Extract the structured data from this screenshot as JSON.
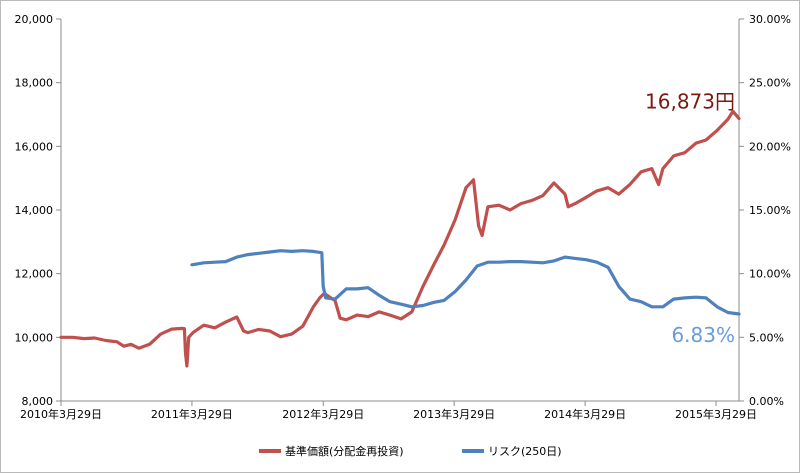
{
  "chart_data": {
    "type": "line",
    "title": "",
    "xlabel": "",
    "ylabel": "",
    "x_ticks": [
      "2010年3月29日",
      "2011年3月29日",
      "2012年3月29日",
      "2013年3月29日",
      "2014年3月29日",
      "2015年3月29日"
    ],
    "x_range": [
      "2010-03-29",
      "2015-06-01"
    ],
    "y_left": {
      "range": [
        8000,
        20000
      ],
      "ticks": [
        "8,000",
        "10,000",
        "12,000",
        "14,000",
        "16,000",
        "18,000",
        "20,000"
      ]
    },
    "y_right": {
      "range": [
        0,
        30
      ],
      "unit": "%",
      "ticks": [
        "0.00%",
        "5.00%",
        "10.00%",
        "15.00%",
        "20.00%",
        "25.00%",
        "30.00%"
      ]
    },
    "grid": false,
    "legend_position": "bottom",
    "series": [
      {
        "name": "基準価額(分配金再投資)",
        "axis": "left",
        "color": "#c0504d",
        "points": [
          [
            "2010-03-29",
            10000
          ],
          [
            "2010-05-01",
            10000
          ],
          [
            "2010-06-01",
            9960
          ],
          [
            "2010-07-01",
            9980
          ],
          [
            "2010-08-01",
            9900
          ],
          [
            "2010-09-01",
            9860
          ],
          [
            "2010-09-20",
            9720
          ],
          [
            "2010-10-10",
            9780
          ],
          [
            "2010-11-01",
            9660
          ],
          [
            "2010-12-01",
            9780
          ],
          [
            "2011-01-01",
            10100
          ],
          [
            "2011-02-01",
            10260
          ],
          [
            "2011-03-01",
            10280
          ],
          [
            "2011-03-08",
            10270
          ],
          [
            "2011-03-11",
            9500
          ],
          [
            "2011-03-15",
            9100
          ],
          [
            "2011-03-20",
            10000
          ],
          [
            "2011-04-01",
            10150
          ],
          [
            "2011-05-01",
            10380
          ],
          [
            "2011-06-01",
            10300
          ],
          [
            "2011-07-01",
            10480
          ],
          [
            "2011-08-01",
            10640
          ],
          [
            "2011-08-20",
            10200
          ],
          [
            "2011-09-01",
            10150
          ],
          [
            "2011-10-01",
            10250
          ],
          [
            "2011-11-01",
            10200
          ],
          [
            "2011-12-01",
            10020
          ],
          [
            "2012-01-01",
            10100
          ],
          [
            "2012-02-01",
            10350
          ],
          [
            "2012-03-01",
            10950
          ],
          [
            "2012-03-20",
            11250
          ],
          [
            "2012-04-01",
            11380
          ],
          [
            "2012-05-01",
            11150
          ],
          [
            "2012-05-15",
            10600
          ],
          [
            "2012-06-01",
            10550
          ],
          [
            "2012-07-01",
            10700
          ],
          [
            "2012-08-01",
            10650
          ],
          [
            "2012-09-01",
            10800
          ],
          [
            "2012-10-01",
            10700
          ],
          [
            "2012-11-01",
            10580
          ],
          [
            "2012-12-01",
            10800
          ],
          [
            "2013-01-01",
            11600
          ],
          [
            "2013-02-01",
            12300
          ],
          [
            "2013-03-01",
            12900
          ],
          [
            "2013-04-01",
            13700
          ],
          [
            "2013-05-01",
            14700
          ],
          [
            "2013-05-22",
            14950
          ],
          [
            "2013-06-05",
            13500
          ],
          [
            "2013-06-15",
            13200
          ],
          [
            "2013-07-01",
            14100
          ],
          [
            "2013-08-01",
            14150
          ],
          [
            "2013-09-01",
            14000
          ],
          [
            "2013-10-01",
            14200
          ],
          [
            "2013-11-01",
            14300
          ],
          [
            "2013-12-01",
            14450
          ],
          [
            "2014-01-01",
            14850
          ],
          [
            "2014-02-01",
            14500
          ],
          [
            "2014-02-10",
            14100
          ],
          [
            "2014-03-01",
            14200
          ],
          [
            "2014-04-01",
            14400
          ],
          [
            "2014-05-01",
            14600
          ],
          [
            "2014-06-01",
            14700
          ],
          [
            "2014-07-01",
            14500
          ],
          [
            "2014-08-01",
            14800
          ],
          [
            "2014-09-01",
            15200
          ],
          [
            "2014-10-01",
            15300
          ],
          [
            "2014-10-20",
            14800
          ],
          [
            "2014-11-01",
            15300
          ],
          [
            "2014-12-01",
            15700
          ],
          [
            "2015-01-01",
            15800
          ],
          [
            "2015-02-01",
            16100
          ],
          [
            "2015-03-01",
            16200
          ],
          [
            "2015-04-01",
            16500
          ],
          [
            "2015-05-01",
            16850
          ],
          [
            "2015-05-15",
            17100
          ],
          [
            "2015-06-01",
            16873
          ]
        ]
      },
      {
        "name": "リスク(250日)",
        "axis": "right",
        "color": "#4f81bd",
        "points": [
          [
            "2011-03-29",
            10.7
          ],
          [
            "2011-05-01",
            10.85
          ],
          [
            "2011-06-01",
            10.9
          ],
          [
            "2011-07-01",
            10.95
          ],
          [
            "2011-08-01",
            11.3
          ],
          [
            "2011-09-01",
            11.5
          ],
          [
            "2011-10-01",
            11.6
          ],
          [
            "2011-11-01",
            11.7
          ],
          [
            "2011-12-01",
            11.8
          ],
          [
            "2012-01-01",
            11.75
          ],
          [
            "2012-02-01",
            11.8
          ],
          [
            "2012-03-01",
            11.75
          ],
          [
            "2012-03-25",
            11.65
          ],
          [
            "2012-03-29",
            9.0
          ],
          [
            "2012-04-05",
            8.1
          ],
          [
            "2012-05-01",
            8.0
          ],
          [
            "2012-06-01",
            8.8
          ],
          [
            "2012-07-01",
            8.8
          ],
          [
            "2012-08-01",
            8.9
          ],
          [
            "2012-09-01",
            8.3
          ],
          [
            "2012-10-01",
            7.8
          ],
          [
            "2012-11-01",
            7.6
          ],
          [
            "2012-12-01",
            7.4
          ],
          [
            "2013-01-01",
            7.5
          ],
          [
            "2013-02-01",
            7.75
          ],
          [
            "2013-03-01",
            7.9
          ],
          [
            "2013-04-01",
            8.6
          ],
          [
            "2013-05-01",
            9.5
          ],
          [
            "2013-06-01",
            10.6
          ],
          [
            "2013-07-01",
            10.9
          ],
          [
            "2013-08-01",
            10.9
          ],
          [
            "2013-09-01",
            10.95
          ],
          [
            "2013-10-01",
            10.95
          ],
          [
            "2013-11-01",
            10.9
          ],
          [
            "2013-12-01",
            10.85
          ],
          [
            "2014-01-01",
            11.0
          ],
          [
            "2014-02-01",
            11.3
          ],
          [
            "2014-03-01",
            11.2
          ],
          [
            "2014-04-01",
            11.1
          ],
          [
            "2014-05-01",
            10.9
          ],
          [
            "2014-06-01",
            10.5
          ],
          [
            "2014-07-01",
            9.0
          ],
          [
            "2014-08-01",
            8.0
          ],
          [
            "2014-09-01",
            7.8
          ],
          [
            "2014-10-01",
            7.4
          ],
          [
            "2014-11-01",
            7.4
          ],
          [
            "2014-12-01",
            8.0
          ],
          [
            "2015-01-01",
            8.1
          ],
          [
            "2015-02-01",
            8.15
          ],
          [
            "2015-03-01",
            8.1
          ],
          [
            "2015-04-01",
            7.4
          ],
          [
            "2015-05-01",
            6.95
          ],
          [
            "2015-06-01",
            6.83
          ]
        ]
      }
    ],
    "annotations": [
      {
        "text": "16,873円",
        "color": "#7a1a12",
        "series": 0
      },
      {
        "text": "6.83%",
        "color": "#6a9be0",
        "series": 1
      }
    ]
  }
}
